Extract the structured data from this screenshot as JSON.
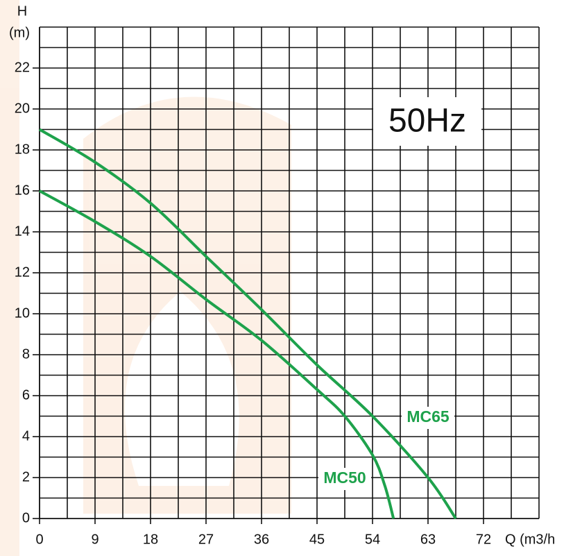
{
  "chart_data": {
    "type": "line",
    "y_axis_title": "H",
    "y_axis_unit": "(m)",
    "x_axis_title": "Q (m3/h",
    "annotation": "50Hz",
    "xlim": [
      0,
      81
    ],
    "ylim": [
      0,
      24
    ],
    "xticks": [
      0,
      9,
      18,
      27,
      36,
      45,
      54,
      63,
      72
    ],
    "yticks": [
      0,
      2,
      4,
      6,
      8,
      10,
      12,
      14,
      16,
      18,
      20,
      22
    ],
    "xgrid": [
      0,
      4.5,
      9,
      13.5,
      18,
      22.5,
      27,
      31.5,
      36,
      40.5,
      45,
      49.5,
      54,
      58.5,
      63,
      67.5,
      72,
      76.5,
      81
    ],
    "ygrid": [
      0,
      1,
      2,
      3,
      4,
      5,
      6,
      7,
      8,
      9,
      10,
      11,
      12,
      13,
      14,
      15,
      16,
      17,
      18,
      19,
      20,
      21,
      22,
      23,
      24
    ],
    "series": [
      {
        "name": "MC65",
        "color": "#1ea24c",
        "x": [
          0,
          9,
          18,
          27,
          36,
          45,
          54,
          63,
          67.5
        ],
        "values": [
          19,
          17.4,
          15.4,
          12.8,
          10.2,
          7.5,
          5.0,
          2.0,
          0
        ]
      },
      {
        "name": "MC50",
        "color": "#1ea24c",
        "x": [
          0,
          9,
          18,
          27,
          36,
          45,
          49.5,
          54,
          56,
          57.4
        ],
        "values": [
          16,
          14.5,
          12.8,
          10.7,
          8.7,
          6.3,
          5.0,
          3.1,
          1.6,
          0
        ]
      }
    ]
  }
}
